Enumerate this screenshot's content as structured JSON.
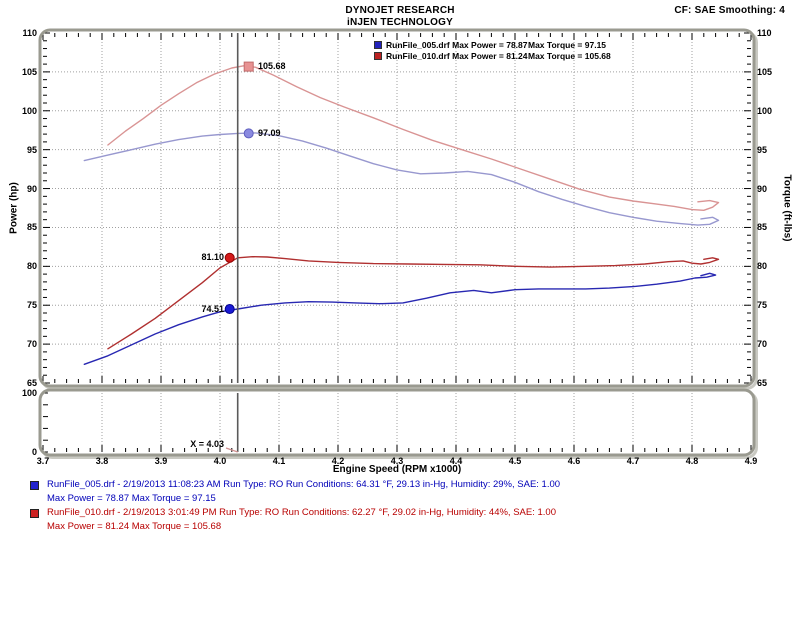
{
  "header": {
    "title_line1": "DYNOJET RESEARCH",
    "title_line2": "iNJEN TECHNOLOGY",
    "cf_label": "CF: SAE  Smoothing: 4"
  },
  "legend": {
    "rows": [
      {
        "left": "RunFile_005.drf Max Power = 78.87",
        "right": "Max Torque = 97.15",
        "chip_color": "#2222bb"
      },
      {
        "left": "RunFile_010.drf Max Power = 81.24",
        "right": "Max Torque = 105.68",
        "chip_color": "#bb2222"
      }
    ]
  },
  "axes": {
    "left_title": "Power (hp)",
    "right_title": "Torque (ft-lbs)",
    "x_title": "Engine Speed (RPM x1000)",
    "y_tick_labels": [
      "65",
      "70",
      "75",
      "80",
      "85",
      "90",
      "95",
      "100",
      "105",
      "110"
    ],
    "x_tick_labels": [
      "3.7",
      "3.8",
      "3.9",
      "4.0",
      "4.1",
      "4.2",
      "4.3",
      "4.4",
      "4.5",
      "4.6",
      "4.7",
      "4.8",
      "4.9"
    ],
    "sub_y_tick_labels": [
      "0",
      "100"
    ]
  },
  "cursor": {
    "x": 4.03,
    "label": "X = 4.03"
  },
  "callouts": [
    {
      "label": "105.68",
      "value": 105.68,
      "marker": "square",
      "side": "right",
      "fill": "#e89292",
      "edge": "#c26a6a"
    },
    {
      "label": "97.09",
      "value": 97.09,
      "marker": "circle",
      "side": "right",
      "fill": "#8a8ae0",
      "edge": "#5f5fbf"
    },
    {
      "label": "81.10",
      "value": 81.1,
      "marker": "circle",
      "side": "left",
      "fill": "#d41a1a",
      "edge": "#8e0000"
    },
    {
      "label": "74.51",
      "value": 74.51,
      "marker": "circle",
      "side": "left",
      "fill": "#1a1ad4",
      "edge": "#00008e"
    }
  ],
  "annotations": [
    {
      "color": "#0000b8",
      "chip_color": "#2222cc",
      "line1": "RunFile_005.drf - 2/19/2013 11:08:23 AM  Run Type: RO  Run Conditions: 64.31 °F, 29.13 in-Hg,  Humidity:  29%, SAE: 1.00",
      "line2": "Max Power = 78.87  Max Torque = 97.15"
    },
    {
      "color": "#b80000",
      "chip_color": "#cc2222",
      "line1": "RunFile_010.drf - 2/19/2013 3:01:49 PM  Run Type: RO  Run Conditions: 62.27 °F, 29.02 in-Hg,  Humidity:  44%, SAE: 1.00",
      "line2": "Max Power = 81.24  Max Torque = 105.68"
    }
  ],
  "chart_data": {
    "type": "line",
    "title": "Dynojet dyno run comparison",
    "xlabel": "Engine Speed (RPM x1000)",
    "ylabel_left": "Power (hp)",
    "ylabel_right": "Torque (ft-lbs)",
    "xlim": [
      3.7,
      4.9
    ],
    "ylim": [
      65,
      110
    ],
    "sub_panel_ylim": [
      0,
      100
    ],
    "x_major_step": 0.1,
    "y_major_step": 5,
    "grid": "dotted",
    "legend_position": "top-center",
    "cursor_x": 4.03,
    "cursor_values": {
      "torque_010": 105.68,
      "torque_005": 97.09,
      "power_010": 81.1,
      "power_005": 74.51
    },
    "series": [
      {
        "name": "RunFile_010 Torque",
        "axis": "torque",
        "color": "#d99494",
        "points": [
          [
            3.81,
            95.6
          ],
          [
            3.84,
            97.4
          ],
          [
            3.87,
            99.0
          ],
          [
            3.9,
            100.7
          ],
          [
            3.93,
            102.2
          ],
          [
            3.96,
            103.6
          ],
          [
            3.99,
            104.7
          ],
          [
            4.02,
            105.5
          ],
          [
            4.04,
            105.78
          ],
          [
            4.06,
            105.6
          ],
          [
            4.09,
            104.6
          ],
          [
            4.13,
            103.1
          ],
          [
            4.17,
            101.7
          ],
          [
            4.21,
            100.5
          ],
          [
            4.26,
            99.1
          ],
          [
            4.31,
            97.6
          ],
          [
            4.36,
            96.2
          ],
          [
            4.41,
            95.0
          ],
          [
            4.46,
            93.8
          ],
          [
            4.51,
            92.5
          ],
          [
            4.56,
            91.2
          ],
          [
            4.61,
            89.9
          ],
          [
            4.66,
            88.9
          ],
          [
            4.7,
            88.4
          ],
          [
            4.74,
            88.0
          ],
          [
            4.77,
            87.7
          ],
          [
            4.8,
            87.3
          ],
          [
            4.82,
            87.2
          ],
          [
            4.835,
            87.6
          ],
          [
            4.845,
            88.2
          ],
          [
            4.83,
            88.45
          ],
          [
            4.81,
            88.3
          ]
        ]
      },
      {
        "name": "RunFile_005 Torque",
        "axis": "torque",
        "color": "#9898cf",
        "points": [
          [
            3.77,
            93.6
          ],
          [
            3.81,
            94.3
          ],
          [
            3.85,
            95.0
          ],
          [
            3.89,
            95.7
          ],
          [
            3.93,
            96.3
          ],
          [
            3.97,
            96.75
          ],
          [
            4.0,
            96.95
          ],
          [
            4.03,
            97.09
          ],
          [
            4.06,
            97.15
          ],
          [
            4.1,
            96.8
          ],
          [
            4.14,
            96.1
          ],
          [
            4.18,
            95.2
          ],
          [
            4.22,
            94.2
          ],
          [
            4.26,
            93.2
          ],
          [
            4.3,
            92.4
          ],
          [
            4.34,
            91.9
          ],
          [
            4.38,
            92.0
          ],
          [
            4.42,
            92.2
          ],
          [
            4.46,
            91.8
          ],
          [
            4.5,
            90.8
          ],
          [
            4.54,
            89.6
          ],
          [
            4.58,
            88.6
          ],
          [
            4.62,
            87.7
          ],
          [
            4.66,
            86.9
          ],
          [
            4.7,
            86.3
          ],
          [
            4.74,
            85.8
          ],
          [
            4.78,
            85.5
          ],
          [
            4.81,
            85.3
          ],
          [
            4.83,
            85.4
          ],
          [
            4.845,
            85.9
          ],
          [
            4.835,
            86.3
          ],
          [
            4.815,
            86.1
          ]
        ]
      },
      {
        "name": "RunFile_010 Power",
        "axis": "power",
        "color": "#b03030",
        "points": [
          [
            3.81,
            69.4
          ],
          [
            3.85,
            71.3
          ],
          [
            3.89,
            73.3
          ],
          [
            3.93,
            75.6
          ],
          [
            3.97,
            77.9
          ],
          [
            4.0,
            79.8
          ],
          [
            4.03,
            81.1
          ],
          [
            4.055,
            81.24
          ],
          [
            4.08,
            81.2
          ],
          [
            4.11,
            81.0
          ],
          [
            4.15,
            80.7
          ],
          [
            4.2,
            80.5
          ],
          [
            4.26,
            80.35
          ],
          [
            4.32,
            80.3
          ],
          [
            4.38,
            80.25
          ],
          [
            4.44,
            80.2
          ],
          [
            4.5,
            80.0
          ],
          [
            4.56,
            79.9
          ],
          [
            4.62,
            80.0
          ],
          [
            4.67,
            80.1
          ],
          [
            4.72,
            80.3
          ],
          [
            4.76,
            80.6
          ],
          [
            4.785,
            80.7
          ],
          [
            4.8,
            80.4
          ],
          [
            4.815,
            80.3
          ],
          [
            4.83,
            80.5
          ],
          [
            4.845,
            80.9
          ],
          [
            4.835,
            81.1
          ],
          [
            4.82,
            80.9
          ]
        ]
      },
      {
        "name": "RunFile_005 Power",
        "axis": "power",
        "color": "#2828b2",
        "points": [
          [
            3.77,
            67.4
          ],
          [
            3.81,
            68.5
          ],
          [
            3.85,
            69.9
          ],
          [
            3.89,
            71.3
          ],
          [
            3.93,
            72.5
          ],
          [
            3.97,
            73.5
          ],
          [
            4.0,
            74.15
          ],
          [
            4.03,
            74.51
          ],
          [
            4.07,
            75.0
          ],
          [
            4.11,
            75.3
          ],
          [
            4.15,
            75.45
          ],
          [
            4.19,
            75.4
          ],
          [
            4.23,
            75.3
          ],
          [
            4.27,
            75.2
          ],
          [
            4.31,
            75.3
          ],
          [
            4.35,
            75.9
          ],
          [
            4.39,
            76.6
          ],
          [
            4.43,
            76.9
          ],
          [
            4.46,
            76.6
          ],
          [
            4.5,
            77.0
          ],
          [
            4.54,
            77.1
          ],
          [
            4.58,
            77.1
          ],
          [
            4.62,
            77.1
          ],
          [
            4.66,
            77.2
          ],
          [
            4.7,
            77.4
          ],
          [
            4.74,
            77.7
          ],
          [
            4.78,
            78.1
          ],
          [
            4.805,
            78.5
          ],
          [
            4.825,
            78.6
          ],
          [
            4.84,
            78.87
          ],
          [
            4.83,
            79.1
          ],
          [
            4.815,
            78.8
          ]
        ]
      }
    ]
  },
  "colors": {
    "frame": "#9a9a90",
    "frame_shadow": "#c9c9c2",
    "grid": "#a0a0a0",
    "cursor": "#5a5a5a",
    "pointer": "#d09090"
  }
}
